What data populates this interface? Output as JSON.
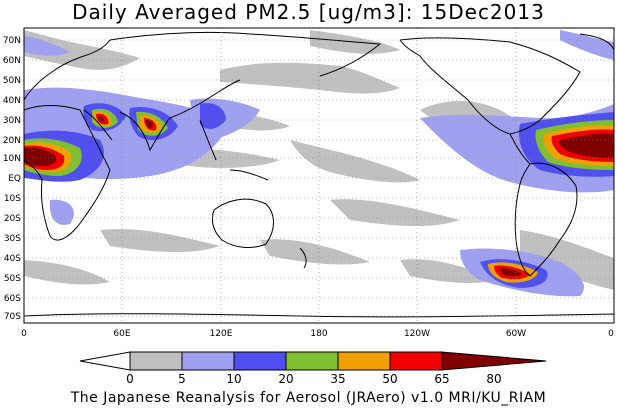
{
  "title": "Daily Averaged PM2.5 [ug/m3]: 15Dec2013",
  "footer": "The Japanese Reanalysis for Aerosol (JRAero) v1.0 MRI/KU_RIAM",
  "lat_labels": [
    "70N",
    "60N",
    "50N",
    "40N",
    "30N",
    "20N",
    "10N",
    "EQ",
    "10S",
    "20S",
    "30S",
    "40S",
    "50S",
    "60S",
    "70S"
  ],
  "lon_labels": [
    "0",
    "60E",
    "120E",
    "180",
    "120W",
    "60W",
    "0"
  ],
  "legend": {
    "labels": [
      "0",
      "5",
      "10",
      "20",
      "35",
      "50",
      "65",
      "80"
    ],
    "colors": [
      "#ffffff",
      "#c0c0c0",
      "#a0a0f0",
      "#5050f0",
      "#80c030",
      "#f0a000",
      "#f00000",
      "#800000"
    ]
  },
  "colors": {
    "light_gray": "#c0c0c0",
    "light_blue": "#a0a0f0",
    "blue": "#5050f0",
    "green": "#80c030",
    "orange": "#f0a000",
    "red": "#f00000",
    "dark_red": "#800000"
  }
}
